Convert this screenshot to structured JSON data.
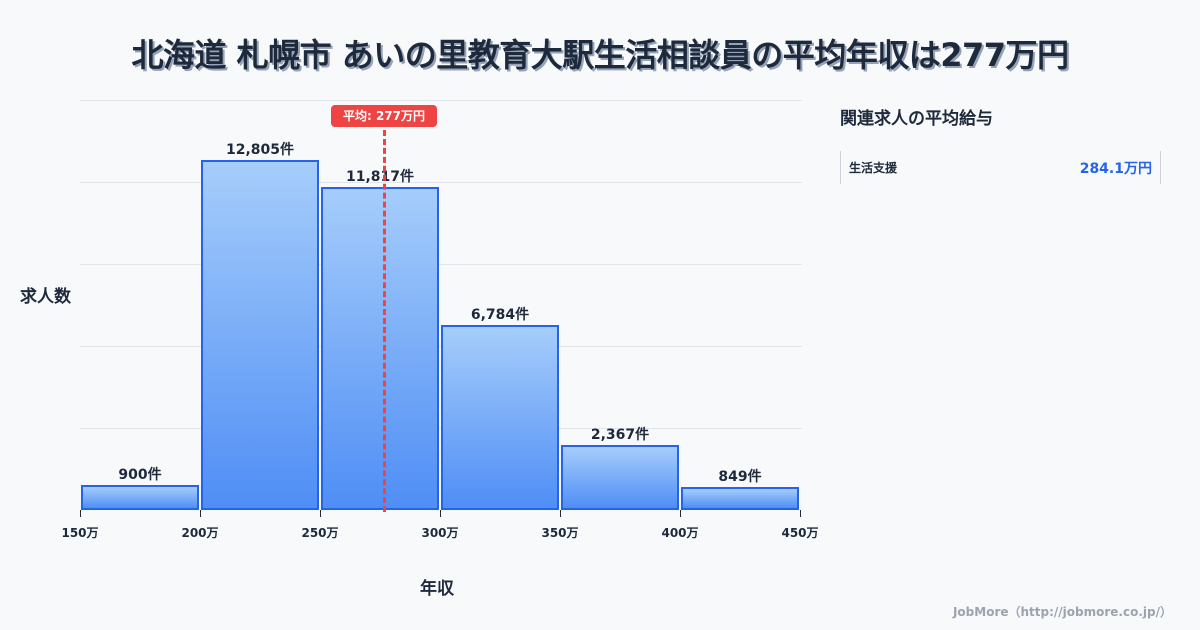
{
  "title": "北海道 札幌市 あいの里教育大駅生活相談員の平均年収は277万円",
  "chart_data": {
    "type": "bar",
    "title": "北海道 札幌市 あいの里教育大駅生活相談員の平均年収は277万円",
    "xlabel": "年収",
    "ylabel": "求人数",
    "categories": [
      "150万-200万",
      "200万-250万",
      "250万-300万",
      "300万-350万",
      "350万-400万",
      "400万-450万"
    ],
    "values": [
      900,
      12805,
      11817,
      6784,
      2367,
      849
    ],
    "value_labels": [
      "900件",
      "12,805件",
      "11,817件",
      "6,784件",
      "2,367件",
      "849件"
    ],
    "x_ticks": [
      "150万",
      "200万",
      "250万",
      "300万",
      "350万",
      "400万",
      "450万"
    ],
    "ylim": [
      0,
      15000
    ],
    "grid": true,
    "average": {
      "value": 277,
      "label": "平均: 277万円"
    },
    "colors": {
      "bar_border": "#2563eb",
      "bar_top": "#a6cdfb",
      "bar_bottom": "#4f8ef5",
      "average_line": "#ef4444"
    }
  },
  "axes": {
    "xlabel": "年収",
    "ylabel": "求人数"
  },
  "average_badge": "平均: 277万円",
  "side_panel": {
    "title": "関連求人の平均給与",
    "items": [
      {
        "category": "生活支援",
        "value": "284.1万円"
      }
    ]
  },
  "footer": "JobMore（http://jobmore.co.jp/）"
}
